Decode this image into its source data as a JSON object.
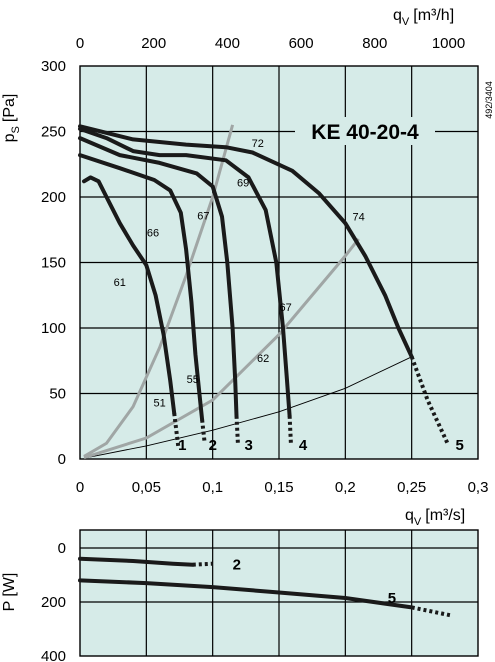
{
  "chart_data": [
    {
      "type": "line",
      "title": "KE  40-20-4",
      "doc_code": "492/3404",
      "xlabel": "q_v [m³/s]",
      "xlabel_main": "q",
      "xlabel_sub": "V",
      "xlabel_unit": "[m³/s]",
      "ylabel": "p_S [Pa]",
      "ylabel_main": "p",
      "ylabel_sub": "S",
      "ylabel_unit": "[Pa]",
      "x2label": "q_V [m³/h]",
      "x2label_main": "q",
      "x2label_sub": "V",
      "x2label_unit": "[m³/h]",
      "xlim": [
        0,
        0.3
      ],
      "ylim": [
        0,
        300
      ],
      "x2lim": [
        0,
        1080
      ],
      "xticks": [
        0,
        0.05,
        0.1,
        0.15,
        0.2,
        0.25,
        0.3
      ],
      "xtick_labels": [
        "0",
        "0,05",
        "0,1",
        "0,15",
        "0,2",
        "0,25",
        "0,3"
      ],
      "yticks": [
        0,
        50,
        100,
        150,
        200,
        250,
        300
      ],
      "ytick_labels": [
        "0",
        "50",
        "100",
        "150",
        "200",
        "250",
        "300"
      ],
      "x2ticks": [
        0,
        200,
        400,
        600,
        800,
        1000
      ],
      "x2tick_labels": [
        "0",
        "200",
        "400",
        "600",
        "800",
        "1000"
      ],
      "grid": true,
      "background": "#d6ebe8",
      "series": [
        {
          "name": "1",
          "values": [
            [
              0.003,
              212
            ],
            [
              0.008,
              215
            ],
            [
              0.014,
              212
            ],
            [
              0.02,
              200
            ],
            [
              0.03,
              180
            ],
            [
              0.04,
              163
            ],
            [
              0.05,
              148
            ],
            [
              0.057,
              125
            ],
            [
              0.063,
              95
            ],
            [
              0.068,
              60
            ],
            [
              0.071,
              35
            ]
          ],
          "dashed": [
            [
              0.071,
              35
            ],
            [
              0.074,
              10
            ]
          ],
          "label": [
            0.074,
            7
          ]
        },
        {
          "name": "2",
          "values": [
            [
              0,
              232
            ],
            [
              0.03,
              222
            ],
            [
              0.056,
              213
            ],
            [
              0.068,
              205
            ],
            [
              0.076,
              188
            ],
            [
              0.08,
              160
            ],
            [
              0.084,
              120
            ],
            [
              0.087,
              80
            ],
            [
              0.09,
              50
            ],
            [
              0.092,
              30
            ]
          ],
          "dashed": [
            [
              0.092,
              30
            ],
            [
              0.094,
              12
            ]
          ],
          "label": [
            0.097,
            7
          ]
        },
        {
          "name": "3",
          "values": [
            [
              0,
              245
            ],
            [
              0.03,
              232
            ],
            [
              0.06,
              226
            ],
            [
              0.088,
              218
            ],
            [
              0.1,
              208
            ],
            [
              0.107,
              185
            ],
            [
              0.111,
              150
            ],
            [
              0.115,
              100
            ],
            [
              0.117,
              60
            ],
            [
              0.118,
              33
            ]
          ],
          "dashed": [
            [
              0.118,
              33
            ],
            [
              0.119,
              12
            ]
          ],
          "label": [
            0.124,
            7
          ]
        },
        {
          "name": "4",
          "values": [
            [
              0,
              252
            ],
            [
              0.02,
              245
            ],
            [
              0.04,
              235
            ],
            [
              0.06,
              232
            ],
            [
              0.08,
              232
            ],
            [
              0.11,
              228
            ],
            [
              0.127,
              215
            ],
            [
              0.14,
              190
            ],
            [
              0.148,
              150
            ],
            [
              0.153,
              100
            ],
            [
              0.156,
              60
            ],
            [
              0.158,
              33
            ]
          ],
          "dashed": [
            [
              0.158,
              33
            ],
            [
              0.159,
              12
            ]
          ],
          "label": [
            0.165,
            7
          ]
        },
        {
          "name": "5",
          "values": [
            [
              0,
              254
            ],
            [
              0.04,
              244
            ],
            [
              0.08,
              240
            ],
            [
              0.11,
              238
            ],
            [
              0.13,
              234
            ],
            [
              0.16,
              220
            ],
            [
              0.18,
              203
            ],
            [
              0.2,
              180
            ],
            [
              0.215,
              155
            ],
            [
              0.23,
              125
            ],
            [
              0.24,
              100
            ],
            [
              0.25,
              78
            ]
          ],
          "dashed": [
            [
              0.25,
              78
            ],
            [
              0.262,
              45
            ],
            [
              0.277,
              12
            ]
          ],
          "label": [
            0.283,
            7
          ]
        }
      ],
      "system_curves": [
        [
          [
            0.003,
            2
          ],
          [
            0.02,
            12
          ],
          [
            0.04,
            40
          ],
          [
            0.06,
            85
          ],
          [
            0.08,
            140
          ],
          [
            0.1,
            200
          ],
          [
            0.115,
            255
          ],
          [
            0.12,
            235
          ],
          [
            0.117,
            232
          ]
        ],
        [
          [
            0.003,
            1
          ],
          [
            0.05,
            16
          ],
          [
            0.1,
            45
          ],
          [
            0.15,
            95
          ],
          [
            0.2,
            155
          ],
          [
            0.208,
            168
          ]
        ]
      ],
      "system_curve_extended": [
        [
          0.003,
          1
        ],
        [
          0.05,
          16
        ],
        [
          0.1,
          45
        ],
        [
          0.15,
          95
        ],
        [
          0.2,
          155
        ],
        [
          0.21,
          168
        ]
      ],
      "resistance_curve": [
        [
          0.005,
          1
        ],
        [
          0.05,
          10
        ],
        [
          0.1,
          22
        ],
        [
          0.15,
          36
        ],
        [
          0.2,
          54
        ],
        [
          0.25,
          78
        ]
      ],
      "efficiency_labels": [
        {
          "text": "72",
          "x": 0.134,
          "y": 238
        },
        {
          "text": "69",
          "x": 0.123,
          "y": 208
        },
        {
          "text": "67",
          "x": 0.093,
          "y": 183
        },
        {
          "text": "66",
          "x": 0.055,
          "y": 170
        },
        {
          "text": "61",
          "x": 0.03,
          "y": 132
        },
        {
          "text": "74",
          "x": 0.21,
          "y": 182
        },
        {
          "text": "67",
          "x": 0.155,
          "y": 113
        },
        {
          "text": "62",
          "x": 0.138,
          "y": 74
        },
        {
          "text": "55",
          "x": 0.085,
          "y": 58
        },
        {
          "text": "51",
          "x": 0.06,
          "y": 40
        }
      ]
    },
    {
      "type": "line",
      "ylabel": "P [W]",
      "ylabel_main": "P",
      "ylabel_unit": "[W]",
      "xlim": [
        0,
        0.3
      ],
      "ylim": [
        400,
        0
      ],
      "yticks": [
        0,
        200,
        400
      ],
      "ytick_labels": [
        "0",
        "200",
        "400"
      ],
      "grid": true,
      "series": [
        {
          "name": "2",
          "values": [
            [
              0,
              40
            ],
            [
              0.04,
              48
            ],
            [
              0.07,
              58
            ],
            [
              0.085,
              62
            ]
          ],
          "dashed": [
            [
              0.085,
              62
            ],
            [
              0.1,
              58
            ]
          ],
          "label": [
            0.115,
            62
          ]
        },
        {
          "name": "5",
          "values": [
            [
              0,
              120
            ],
            [
              0.05,
              130
            ],
            [
              0.1,
              145
            ],
            [
              0.15,
              165
            ],
            [
              0.2,
              185
            ],
            [
              0.25,
              220
            ]
          ],
          "dashed": [
            [
              0.25,
              220
            ],
            [
              0.28,
              250
            ]
          ],
          "label": [
            0.232,
            185
          ]
        }
      ]
    }
  ]
}
